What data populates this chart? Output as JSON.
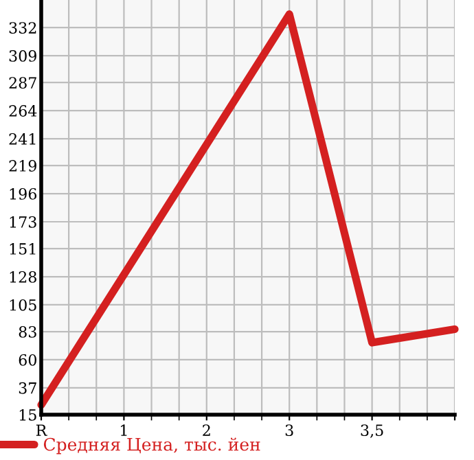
{
  "chart_data": {
    "type": "line",
    "categories": [
      "R",
      "1",
      "2",
      "3",
      "3,5",
      null
    ],
    "series": [
      {
        "name": "Средняя Цена, тыс. йен",
        "color": "#d42020",
        "values": [
          23,
          null,
          null,
          343,
          74,
          85
        ]
      }
    ],
    "ylim": [
      15,
      354.6
    ],
    "yticks": [
      15,
      37,
      60,
      83,
      105,
      128,
      151,
      173,
      196,
      219,
      241,
      264,
      287,
      309,
      332
    ],
    "grid": true,
    "legend": "bottom",
    "marker": "none",
    "line_style": "solid"
  }
}
